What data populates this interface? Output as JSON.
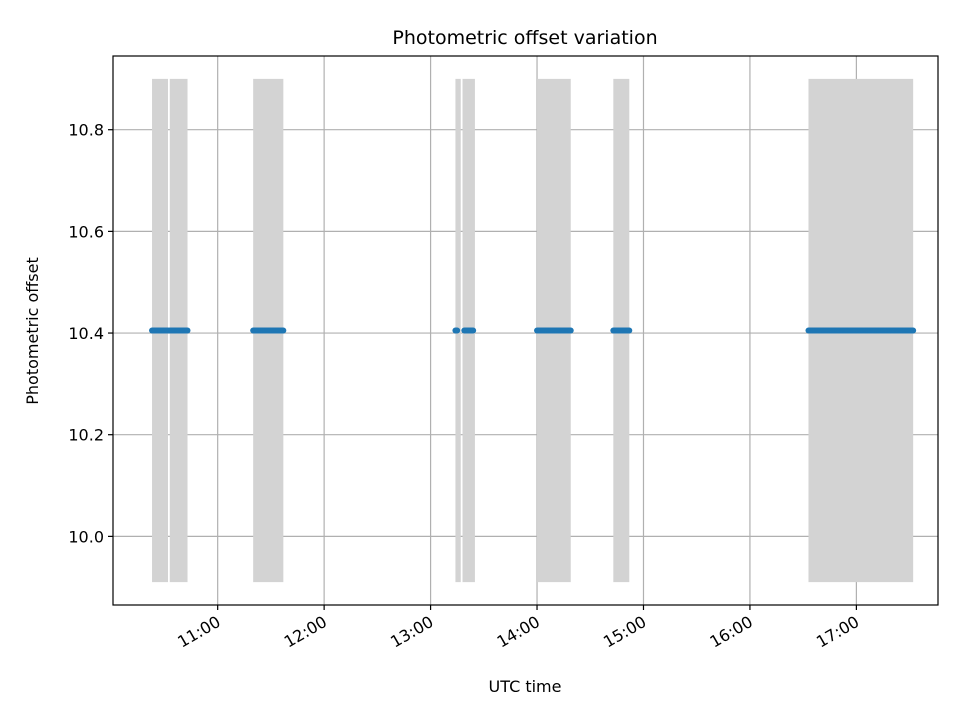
{
  "chart_data": {
    "type": "scatter",
    "title": "Photometric offset variation",
    "xlabel": "UTC time",
    "ylabel": "Photometric offset",
    "x_axis_type": "time",
    "xlim": [
      "10:01",
      "17:46"
    ],
    "ylim": [
      9.865,
      10.945
    ],
    "grid": true,
    "x_ticks": [
      "11:00",
      "12:00",
      "13:00",
      "14:00",
      "15:00",
      "16:00",
      "17:00"
    ],
    "y_ticks": [
      "10.0",
      "10.2",
      "10.4",
      "10.6",
      "10.8"
    ],
    "shaded_bands": {
      "color": "#d3d3d3",
      "y_range": [
        9.91,
        10.9
      ],
      "intervals": [
        [
          "10:23",
          "10:32"
        ],
        [
          "10:33",
          "10:43"
        ],
        [
          "11:20",
          "11:37"
        ],
        [
          "13:14",
          "13:17"
        ],
        [
          "13:18",
          "13:25"
        ],
        [
          "14:00",
          "14:19"
        ],
        [
          "14:43",
          "14:52"
        ],
        [
          "16:33",
          "17:32"
        ]
      ]
    },
    "series": [
      {
        "color": "#1f77b4",
        "segments": [
          {
            "start": "10:23",
            "end": "10:32",
            "y": 10.405
          },
          {
            "start": "10:33",
            "end": "10:43",
            "y": 10.405
          },
          {
            "start": "11:20",
            "end": "11:37",
            "y": 10.405
          },
          {
            "start": "13:14",
            "end": "13:15",
            "y": 10.405
          },
          {
            "start": "13:19",
            "end": "13:24",
            "y": 10.405
          },
          {
            "start": "14:00",
            "end": "14:19",
            "y": 10.405
          },
          {
            "start": "14:43",
            "end": "14:52",
            "y": 10.405
          },
          {
            "start": "16:33",
            "end": "17:32",
            "y": 10.405
          }
        ]
      }
    ]
  }
}
